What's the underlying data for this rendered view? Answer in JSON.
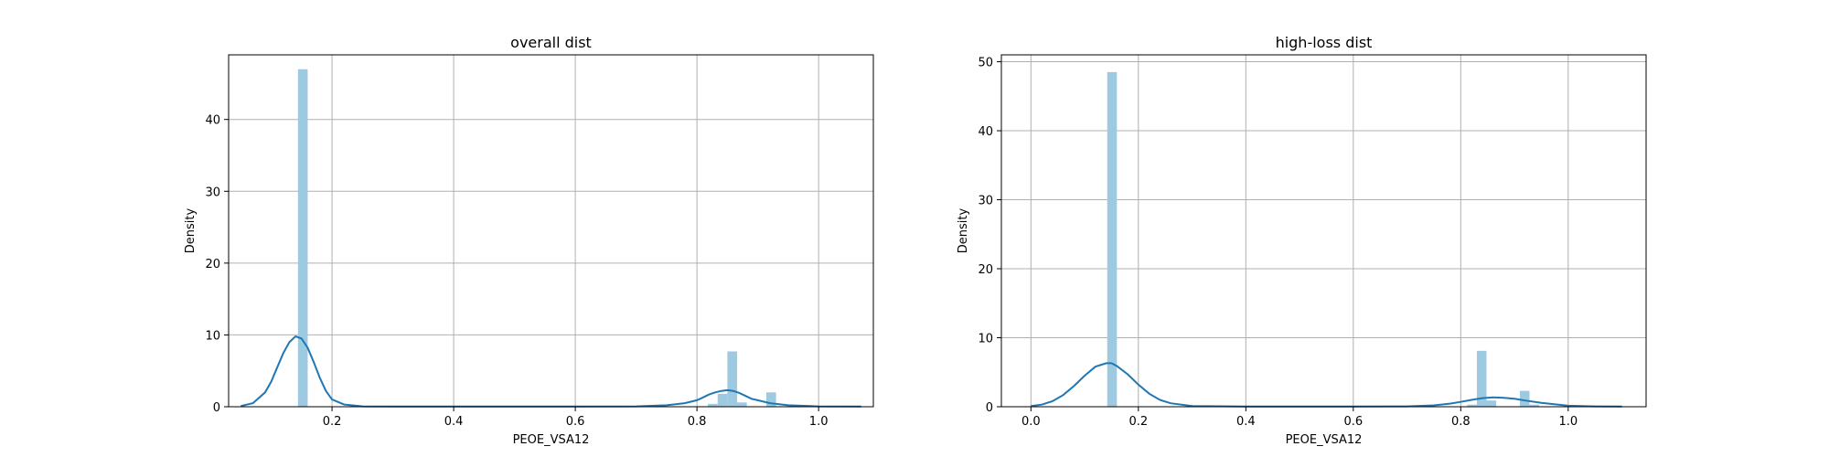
{
  "chart_data": [
    {
      "type": "histogram_kde",
      "title": "overall dist",
      "xlabel": "PEOE_VSA12",
      "ylabel": "Density",
      "xlim": [
        0.03,
        1.09
      ],
      "ylim": [
        0,
        49
      ],
      "xticks": [
        0.2,
        0.4,
        0.6,
        0.8,
        1.0
      ],
      "xtick_labels": [
        "0.2",
        "0.4",
        "0.6",
        "0.8",
        "1.0"
      ],
      "yticks": [
        0,
        10,
        20,
        30,
        40
      ],
      "ytick_labels": [
        "0",
        "10",
        "20",
        "30",
        "40"
      ],
      "grid": true,
      "bar_color": "#9ecae1",
      "line_color": "#1f77b4",
      "bins": [
        {
          "x0": 0.144,
          "x1": 0.16,
          "density": 47.0
        },
        {
          "x0": 0.818,
          "x1": 0.834,
          "density": 0.4
        },
        {
          "x0": 0.834,
          "x1": 0.85,
          "density": 1.8
        },
        {
          "x0": 0.85,
          "x1": 0.866,
          "density": 7.7
        },
        {
          "x0": 0.866,
          "x1": 0.882,
          "density": 0.6
        },
        {
          "x0": 0.914,
          "x1": 0.93,
          "density": 2.0
        }
      ],
      "kde": {
        "x": [
          0.05,
          0.07,
          0.09,
          0.1,
          0.11,
          0.12,
          0.13,
          0.14,
          0.15,
          0.16,
          0.17,
          0.18,
          0.19,
          0.2,
          0.22,
          0.25,
          0.3,
          0.4,
          0.5,
          0.6,
          0.7,
          0.75,
          0.78,
          0.8,
          0.81,
          0.82,
          0.83,
          0.84,
          0.85,
          0.86,
          0.87,
          0.88,
          0.89,
          0.9,
          0.92,
          0.95,
          1.0,
          1.07
        ],
        "y": [
          0.1,
          0.5,
          2.0,
          3.5,
          5.5,
          7.5,
          9.0,
          9.8,
          9.5,
          8.2,
          6.2,
          4.0,
          2.2,
          1.0,
          0.3,
          0.05,
          0.02,
          0.02,
          0.02,
          0.02,
          0.05,
          0.2,
          0.5,
          0.9,
          1.3,
          1.7,
          2.0,
          2.2,
          2.3,
          2.2,
          1.9,
          1.5,
          1.1,
          0.9,
          0.5,
          0.2,
          0.05,
          0.02
        ]
      }
    },
    {
      "type": "histogram_kde",
      "title": "high-loss dist",
      "xlabel": "PEOE_VSA12",
      "ylabel": "Density",
      "xlim": [
        -0.055,
        1.145
      ],
      "ylim": [
        0,
        51
      ],
      "xticks": [
        0.0,
        0.2,
        0.4,
        0.6,
        0.8,
        1.0
      ],
      "xtick_labels": [
        "0.0",
        "0.2",
        "0.4",
        "0.6",
        "0.8",
        "1.0"
      ],
      "yticks": [
        0,
        10,
        20,
        30,
        40,
        50
      ],
      "ytick_labels": [
        "0",
        "10",
        "20",
        "30",
        "40",
        "50"
      ],
      "grid": true,
      "bar_color": "#9ecae1",
      "line_color": "#1f77b4",
      "bins": [
        {
          "x0": 0.142,
          "x1": 0.16,
          "density": 48.5
        },
        {
          "x0": 0.812,
          "x1": 0.83,
          "density": 0.3
        },
        {
          "x0": 0.83,
          "x1": 0.848,
          "density": 8.1
        },
        {
          "x0": 0.848,
          "x1": 0.866,
          "density": 0.9
        },
        {
          "x0": 0.91,
          "x1": 0.928,
          "density": 2.3
        },
        {
          "x0": 0.928,
          "x1": 0.946,
          "density": 0.3
        }
      ],
      "kde": {
        "x": [
          0.0,
          0.02,
          0.04,
          0.06,
          0.08,
          0.1,
          0.12,
          0.14,
          0.15,
          0.16,
          0.18,
          0.2,
          0.22,
          0.24,
          0.26,
          0.3,
          0.4,
          0.5,
          0.6,
          0.7,
          0.75,
          0.78,
          0.8,
          0.82,
          0.84,
          0.86,
          0.88,
          0.9,
          0.92,
          0.95,
          1.0,
          1.05,
          1.1
        ],
        "y": [
          0.1,
          0.3,
          0.8,
          1.7,
          3.0,
          4.5,
          5.8,
          6.3,
          6.3,
          5.9,
          4.7,
          3.2,
          1.9,
          1.0,
          0.5,
          0.1,
          0.02,
          0.02,
          0.02,
          0.05,
          0.2,
          0.45,
          0.7,
          1.0,
          1.25,
          1.35,
          1.3,
          1.15,
          0.9,
          0.55,
          0.15,
          0.05,
          0.02
        ]
      }
    }
  ]
}
